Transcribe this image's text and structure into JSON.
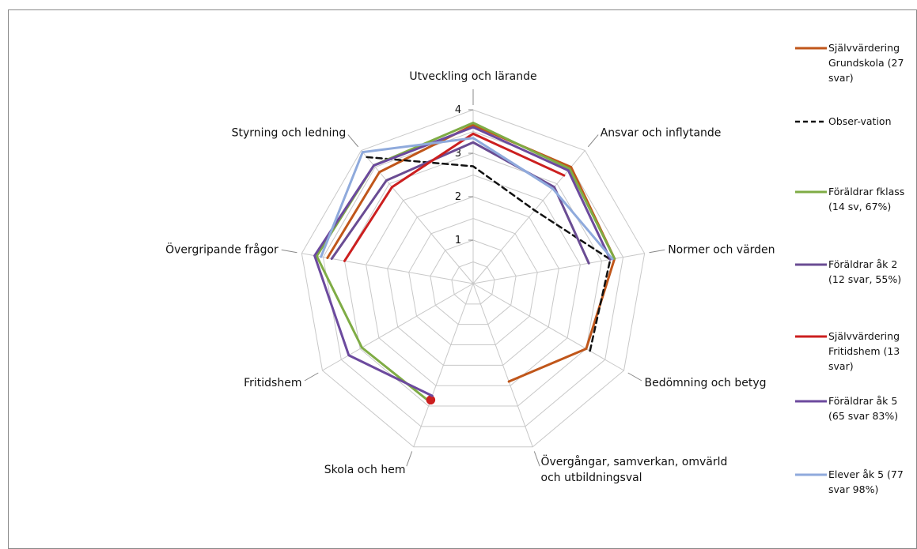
{
  "chart_data": {
    "type": "radar",
    "categories": [
      "Utveckling och lärande",
      "Ansvar och inflytande",
      "Normer och värden",
      "Bedömning och betyg",
      "Övergångar, samverkan, omvärld och utbildningsval",
      "Skola och hem",
      "Fritidshem",
      "Övergripande frågor",
      "Styrning och ledning"
    ],
    "category_lines": [
      [
        "Utveckling och lärande"
      ],
      [
        "Ansvar och inflytande"
      ],
      [
        "Normer och värden"
      ],
      [
        "Bedömning och betyg"
      ],
      [
        "Övergångar, samverkan, omvärld",
        "och utbildningsval"
      ],
      [
        "Skola och hem"
      ],
      [
        "Fritidshem"
      ],
      [
        "Övergripande frågor"
      ],
      [
        "Styrning och ledning"
      ]
    ],
    "rlim": [
      0,
      4
    ],
    "ticks": [
      1,
      2,
      3,
      4
    ],
    "grid": true,
    "legend_position": "right",
    "series": [
      {
        "name": "Självvärdering Grundskola (27 svar)",
        "legend_lines": [
          "Självvärdering",
          "Grundskola (27",
          "svar)"
        ],
        "color": "#c0561a",
        "dash": false,
        "values": [
          3.65,
          3.5,
          3.3,
          3.0,
          2.4,
          null,
          null,
          3.4,
          3.35
        ]
      },
      {
        "name": "Obser-vation",
        "legend_lines": [
          "Obser-vation"
        ],
        "color": "#111111",
        "dash": true,
        "values": [
          2.7,
          2.2,
          3.2,
          3.1,
          null,
          null,
          null,
          null,
          3.8
        ]
      },
      {
        "name": "Föräldrar fklass (14 sv, 67%)",
        "legend_lines": [
          "Föräldrar fklass",
          "(14 sv, 67%)"
        ],
        "color": "#7fac45",
        "dash": false,
        "values": [
          3.7,
          3.45,
          3.3,
          null,
          null,
          2.9,
          2.95,
          3.65,
          3.55
        ]
      },
      {
        "name": "Föräldrar åk 2 (12 svar, 55%)",
        "legend_lines": [
          "Föräldrar åk 2",
          "(12 svar, 55%)"
        ],
        "color": "#6a4c93",
        "dash": false,
        "values": [
          3.25,
          2.9,
          2.7,
          null,
          null,
          null,
          null,
          3.3,
          3.1
        ]
      },
      {
        "name": "Självvärdering Fritidshem (13 svar)",
        "legend_lines": [
          "Självvärdering",
          "Fritidshem (13",
          "svar)"
        ],
        "color": "#cc1f1f",
        "dash": false,
        "values": [
          3.45,
          3.25,
          null,
          null,
          null,
          2.85,
          null,
          3.0,
          2.9
        ]
      },
      {
        "name": "Föräldrar åk 5 (65 svar 83%)",
        "legend_lines": [
          "Föräldrar åk 5",
          "(65 svar 83%)"
        ],
        "color": "#6c4a9e",
        "dash": false,
        "values": [
          3.6,
          3.4,
          3.2,
          null,
          null,
          2.75,
          3.3,
          3.7,
          3.55
        ]
      },
      {
        "name": "Elever åk 5 (77 svar 98%)",
        "legend_lines": [
          "Elever åk 5 (77",
          "svar 98%)"
        ],
        "color": "#8faadc",
        "dash": false,
        "values": [
          3.35,
          2.85,
          3.25,
          null,
          null,
          null,
          null,
          3.55,
          3.95
        ]
      }
    ]
  }
}
